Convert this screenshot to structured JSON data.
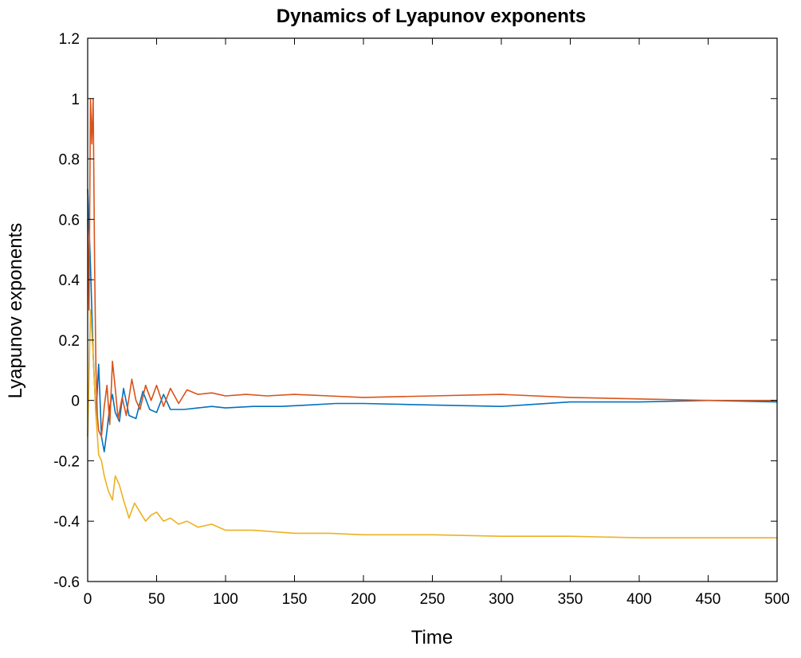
{
  "chart_data": {
    "type": "line",
    "title": "Dynamics of Lyapunov exponents",
    "xlabel": "Time",
    "ylabel": "Lyapunov exponents",
    "xlim": [
      0,
      500
    ],
    "ylim": [
      -0.6,
      1.2
    ],
    "xticks": [
      "0",
      "50",
      "100",
      "150",
      "200",
      "250",
      "300",
      "350",
      "400",
      "450",
      "500"
    ],
    "yticks": [
      "1.2",
      "1",
      "0.8",
      "0.6",
      "0.4",
      "0.2",
      "0",
      "-0.2",
      "-0.4",
      "-0.6"
    ],
    "grid": false,
    "legend": "none",
    "series": [
      {
        "color": "#0072BD",
        "x": [
          0,
          2,
          4,
          6,
          8,
          10,
          12,
          14,
          16,
          18,
          20,
          23,
          26,
          30,
          35,
          40,
          45,
          50,
          55,
          60,
          70,
          80,
          90,
          100,
          120,
          140,
          160,
          180,
          200,
          250,
          300,
          350,
          400,
          450,
          500
        ],
        "y": [
          0.7,
          0.45,
          0.15,
          -0.05,
          0.12,
          -0.12,
          -0.17,
          -0.1,
          -0.02,
          0.02,
          -0.04,
          -0.07,
          0.04,
          -0.05,
          -0.06,
          0.03,
          -0.03,
          -0.04,
          0.02,
          -0.03,
          -0.03,
          -0.025,
          -0.02,
          -0.025,
          -0.02,
          -0.02,
          -0.015,
          -0.01,
          -0.01,
          -0.015,
          -0.02,
          -0.005,
          -0.005,
          0.0,
          -0.005
        ]
      },
      {
        "color": "#D95319",
        "x": [
          0,
          1,
          2,
          3,
          4,
          5,
          6,
          7,
          8,
          10,
          12,
          14,
          16,
          18,
          20,
          22,
          25,
          28,
          32,
          35,
          38,
          42,
          46,
          50,
          55,
          60,
          66,
          72,
          80,
          90,
          100,
          115,
          130,
          150,
          175,
          200,
          250,
          300,
          350,
          400,
          450,
          500
        ],
        "y": [
          0.6,
          0.3,
          1.0,
          0.85,
          1.0,
          0.45,
          0.1,
          -0.05,
          -0.1,
          -0.12,
          -0.02,
          0.05,
          -0.08,
          0.13,
          0.04,
          -0.06,
          0.01,
          -0.05,
          0.07,
          0.0,
          -0.03,
          0.05,
          0.0,
          0.05,
          -0.02,
          0.04,
          -0.01,
          0.035,
          0.02,
          0.025,
          0.015,
          0.02,
          0.015,
          0.02,
          0.015,
          0.01,
          0.015,
          0.02,
          0.01,
          0.005,
          0.0,
          0.0
        ]
      },
      {
        "color": "#EDB120",
        "x": [
          0,
          2,
          4,
          6,
          8,
          10,
          12,
          15,
          18,
          20,
          23,
          26,
          30,
          34,
          38,
          42,
          46,
          50,
          55,
          60,
          66,
          72,
          80,
          90,
          100,
          120,
          150,
          175,
          200,
          250,
          300,
          350,
          400,
          450,
          500
        ],
        "y": [
          -0.12,
          0.3,
          0.15,
          -0.05,
          -0.18,
          -0.2,
          -0.25,
          -0.3,
          -0.33,
          -0.25,
          -0.28,
          -0.33,
          -0.39,
          -0.34,
          -0.37,
          -0.4,
          -0.38,
          -0.37,
          -0.4,
          -0.39,
          -0.41,
          -0.4,
          -0.42,
          -0.41,
          -0.43,
          -0.43,
          -0.44,
          -0.44,
          -0.445,
          -0.445,
          -0.45,
          -0.45,
          -0.455,
          -0.455,
          -0.455
        ]
      }
    ]
  }
}
